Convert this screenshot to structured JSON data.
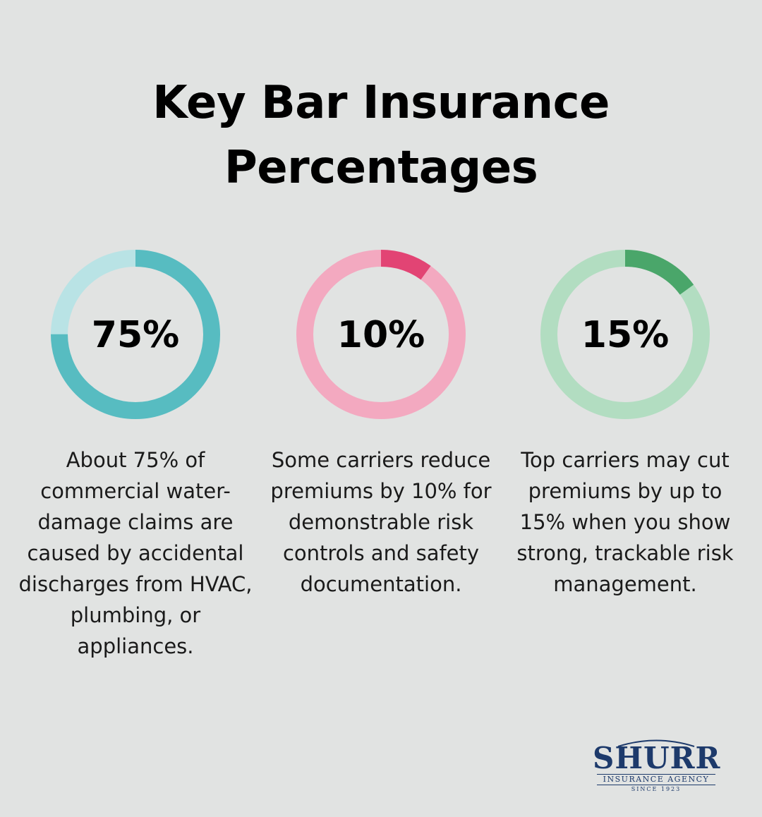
{
  "title_line1": "Key Bar Insurance",
  "title_line2": "Percentages",
  "chart_data": {
    "type": "pie",
    "items": [
      {
        "label": "75%",
        "value": 75,
        "description": "About 75% of commercial water-damage claims are caused by accidental discharges from HVAC, plumbing, or appliances.",
        "color_fill": "#57bcc1",
        "color_track": "#b9e3e5"
      },
      {
        "label": "10%",
        "value": 10,
        "description": "Some carriers reduce premiums by 10% for demonstrable risk controls and safety documentation.",
        "color_fill": "#e24474",
        "color_track": "#f3a9c0"
      },
      {
        "label": "15%",
        "value": 15,
        "description": "Top carriers may cut premiums by up to 15% when you show strong, trackable risk management.",
        "color_fill": "#4aa66a",
        "color_track": "#b2ddc1"
      }
    ]
  },
  "logo": {
    "name": "SHURR",
    "subtitle": "INSURANCE AGENCY",
    "since": "SINCE 1923"
  }
}
